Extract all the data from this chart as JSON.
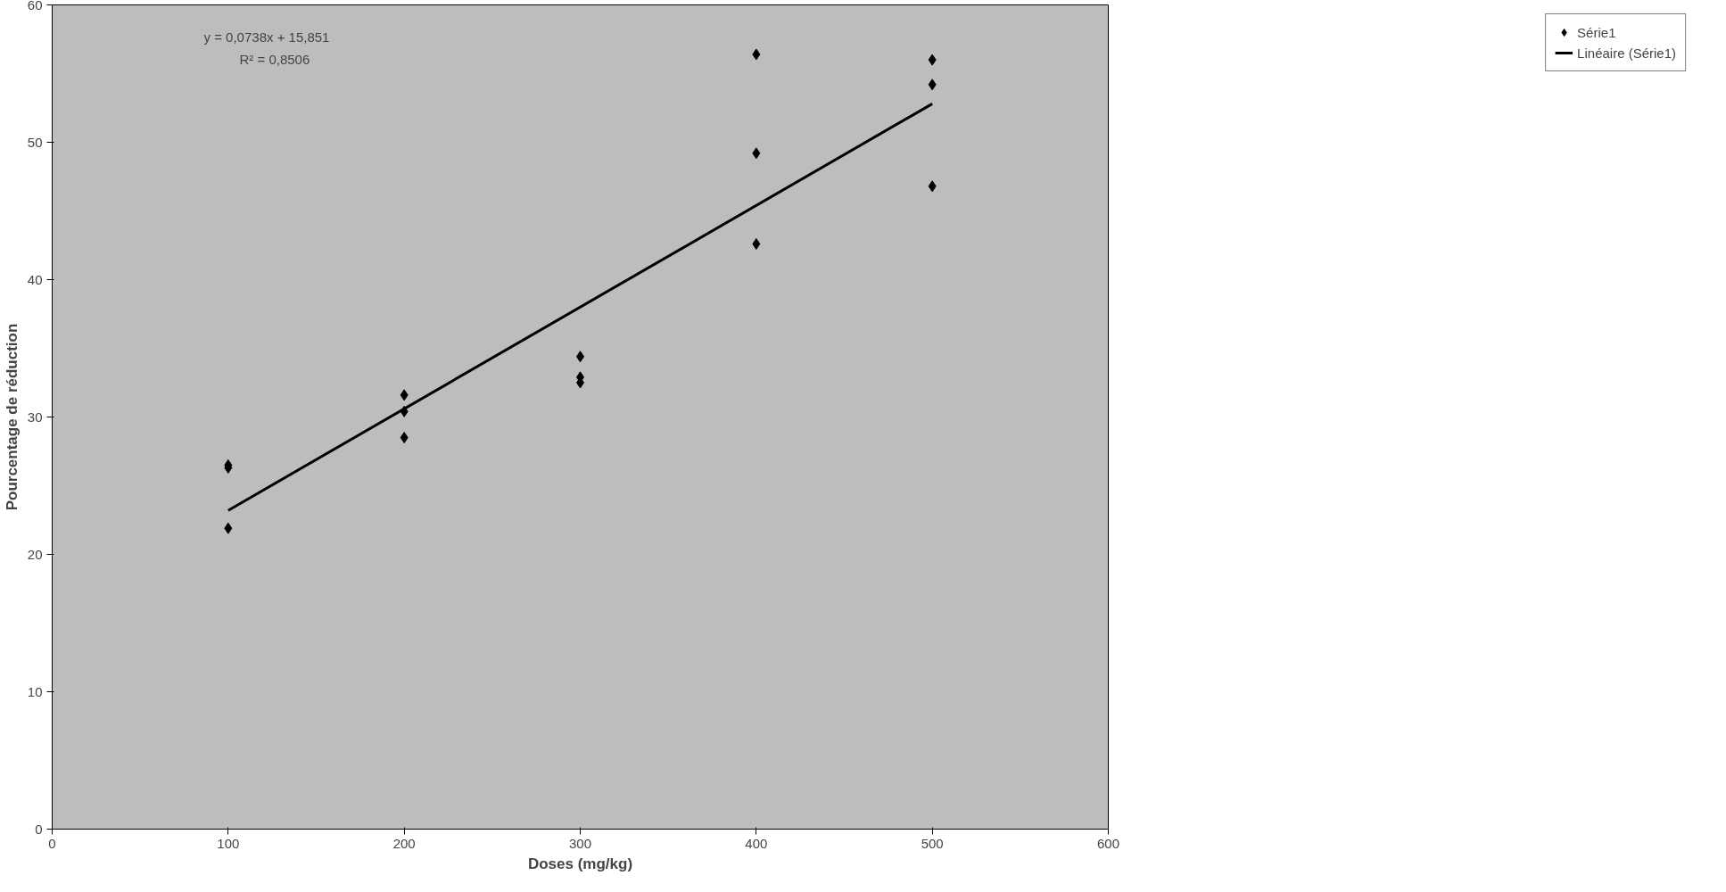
{
  "chart_data": {
    "type": "scatter",
    "xlabel": "Doses (mg/kg)",
    "ylabel": "Pourcentage de réduction",
    "xlim": [
      0,
      600
    ],
    "xticks": [
      0,
      100,
      200,
      300,
      400,
      500,
      600
    ],
    "ylim": [
      0,
      60
    ],
    "yticks": [
      0,
      10,
      20,
      30,
      40,
      50,
      60
    ],
    "grid": false,
    "legend": "right",
    "marker": "diamond",
    "annotations": [
      "y = 0,0738x + 15,851",
      "R² = 0,8506"
    ],
    "series": [
      {
        "name": "Série1",
        "color": "#000000",
        "x": [
          100,
          100,
          100,
          200,
          200,
          200,
          300,
          300,
          300,
          400,
          400,
          400,
          500,
          500,
          500
        ],
        "values": [
          26.5,
          26.3,
          21.9,
          31.6,
          30.4,
          28.5,
          34.4,
          32.9,
          32.5,
          56.4,
          49.2,
          42.6,
          56.0,
          54.2,
          46.8
        ]
      },
      {
        "name": "Linéaire (Série1)",
        "color": "#000000",
        "type": "line",
        "marker": "none",
        "line_style": "solid",
        "x": [
          100,
          500
        ],
        "values": [
          23.2,
          52.8
        ]
      }
    ]
  }
}
